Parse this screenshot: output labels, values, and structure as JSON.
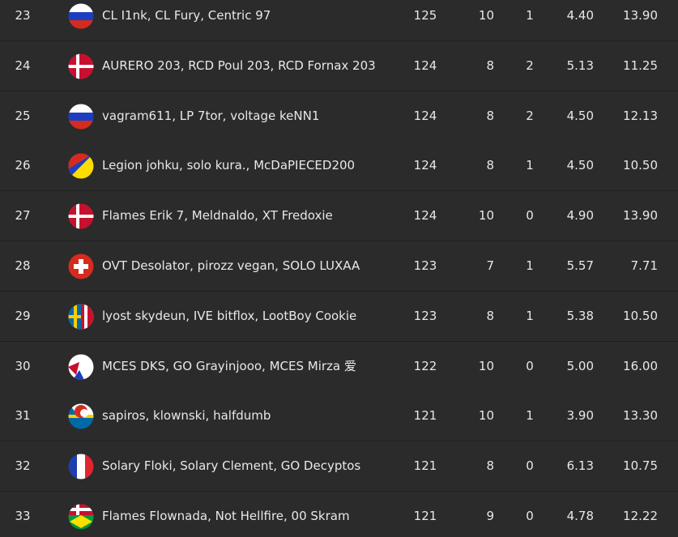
{
  "table": {
    "rows": [
      [
        23,
        "CL I1nk, CL Fury, Centric 97",
        125,
        10,
        1,
        "4.40",
        "13.90"
      ],
      [
        24,
        "AURERO 203, RCD Poul 203, RCD Fornax 203",
        124,
        8,
        2,
        "5.13",
        "11.25"
      ],
      [
        25,
        "vagram611, LP 7tor, voltage keNN1",
        124,
        8,
        2,
        "4.50",
        "12.13"
      ],
      [
        26,
        "Legion johku, solo kura., McDaPIECED200",
        124,
        8,
        1,
        "4.50",
        "10.50"
      ],
      [
        27,
        "Flames Erik 7, Meldnaldo, XT Fredoxie",
        124,
        10,
        0,
        "4.90",
        "13.90"
      ],
      [
        28,
        "OVT Desolator, pirozz vegan, SOLO LUXAA",
        123,
        7,
        1,
        "5.57",
        "7.71"
      ],
      [
        29,
        "lyost skydeun, IVE bitflox, LootBoy Cookie",
        123,
        8,
        1,
        "5.38",
        "10.50"
      ],
      [
        30,
        "MCES DKS, GO Grayinjooo, MCES Mirza 爱",
        122,
        10,
        0,
        "5.00",
        "16.00"
      ],
      [
        31,
        "sapiros, klownski, halfdumb",
        121,
        10,
        1,
        "3.90",
        "13.30"
      ],
      [
        32,
        "Solary Floki, Solary Clement, GO Decyptos",
        121,
        8,
        0,
        "6.13",
        "10.75"
      ],
      [
        33,
        "Flames Flownada, Not Hellfire, 00 Skram",
        121,
        9,
        0,
        "4.78",
        "12.22"
      ]
    ]
  }
}
